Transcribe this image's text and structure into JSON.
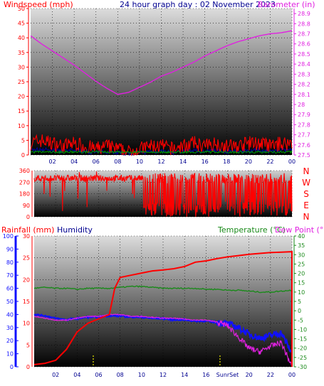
{
  "header": {
    "left": "Windspeed (mph)",
    "center": "24 hour graph day : 02 November 2023",
    "right": "Barometer (in)"
  },
  "legend": {
    "rain": "Rainfall (mm)",
    "humidity": "Humidity",
    "temperature": "Temperature (°C)",
    "dewpoint": "Dew Point (°C)"
  },
  "colors": {
    "windspeed": "#ff0000",
    "winddir": "#ff0000",
    "barometer": "#e020e0",
    "rain": "#ff0000",
    "humidity": "#1010ff",
    "temperature": "#1a8a1a",
    "dewpoint": "#e020e0",
    "gust_base": "#000090",
    "avg_wind": "#00a000",
    "sunrise_sunset": "#e8e800"
  },
  "chart_data": [
    {
      "type": "line",
      "title": "Windspeed / Barometer",
      "x_ticks": [
        "02",
        "04",
        "06",
        "08",
        "10",
        "12",
        "14",
        "16",
        "18",
        "20",
        "22",
        "00"
      ],
      "y_left_label": "Windspeed (mph)",
      "y_left_ticks": [
        0,
        5,
        10,
        15,
        20,
        25,
        30,
        35,
        40,
        45,
        50
      ],
      "y_left_range": [
        0,
        50
      ],
      "y_right_label": "Barometer (in)",
      "y_right_ticks": [
        "27.5",
        "27.6",
        "27.7",
        "27.8",
        "27.9",
        "28",
        "28.1",
        "28.2",
        "28.3",
        "28.4",
        "28.5",
        "28.6",
        "28.7",
        "28.8",
        "28.9"
      ],
      "y_right_range": [
        27.5,
        28.95
      ],
      "series": [
        {
          "name": "Barometer (in)",
          "axis": "right",
          "x": [
            0,
            1,
            2,
            3,
            4,
            5,
            6,
            7,
            8,
            9,
            10,
            11,
            12,
            13,
            14,
            15,
            16,
            17,
            18,
            19,
            20,
            21,
            22,
            23,
            24
          ],
          "values": [
            28.68,
            28.6,
            28.53,
            28.46,
            28.39,
            28.31,
            28.23,
            28.16,
            28.1,
            28.12,
            28.17,
            28.22,
            28.28,
            28.32,
            28.37,
            28.42,
            28.48,
            28.53,
            28.58,
            28.62,
            28.65,
            28.68,
            28.7,
            28.71,
            28.73
          ]
        },
        {
          "name": "Windspeed (mph)",
          "axis": "left",
          "x": [
            0,
            1,
            2,
            3,
            4,
            5,
            6,
            7,
            8,
            9,
            10,
            11,
            12,
            13,
            14,
            15,
            16,
            17,
            18,
            19,
            20,
            21,
            22,
            23,
            24
          ],
          "values": [
            4,
            5,
            4,
            3,
            4,
            3,
            2,
            3,
            2,
            1,
            2,
            3,
            3,
            2,
            3,
            4,
            3,
            4,
            3,
            3,
            4,
            4,
            3,
            4,
            4
          ]
        }
      ]
    },
    {
      "type": "scatter",
      "title": "Wind Direction",
      "x_ticks": [
        "02",
        "04",
        "06",
        "08",
        "10",
        "12",
        "14",
        "16",
        "18",
        "20",
        "22",
        "00"
      ],
      "y_ticks": [
        "360",
        "270",
        "180",
        "90",
        "0"
      ],
      "y_range": [
        0,
        360
      ],
      "compass_labels": [
        "N",
        "W",
        "S",
        "E",
        "N"
      ],
      "series": [
        {
          "name": "Wind Direction",
          "x": [
            0,
            0.5,
            1,
            1.5,
            2,
            3,
            4,
            5,
            6,
            7,
            8,
            9,
            10,
            10.5,
            11,
            12,
            13,
            14,
            15,
            16,
            17,
            18,
            19,
            20,
            21,
            22,
            23,
            24
          ],
          "values": [
            320,
            300,
            200,
            310,
            320,
            300,
            310,
            305,
            300,
            310,
            320,
            325,
            330,
            180,
            60,
            40,
            200,
            90,
            30,
            250,
            70,
            200,
            60,
            330,
            100,
            250,
            40,
            200
          ]
        }
      ]
    },
    {
      "type": "line",
      "title": "Rainfall / Humidity / Temperature / Dew Point",
      "x_ticks": [
        "02",
        "04",
        "06",
        "08",
        "10",
        "12",
        "14",
        "16",
        "SunrSet",
        "20",
        "22",
        "00"
      ],
      "y_humidity_ticks": [
        0,
        10,
        20,
        30,
        40,
        50,
        60,
        70,
        80,
        90,
        100
      ],
      "y_rain_ticks": [
        0,
        5,
        10,
        15,
        20,
        25,
        30
      ],
      "y_rain_range": [
        0,
        30
      ],
      "y_temp_ticks": [
        -30,
        -25,
        -20,
        -15,
        -10,
        -5,
        0,
        5,
        10,
        15,
        20,
        25,
        30,
        35,
        40
      ],
      "y_temp_range": [
        -30,
        40
      ],
      "sunrise_hour": 5.5,
      "sunset_hour": 17.3,
      "series": [
        {
          "name": "Rainfall (mm)",
          "axis": "rain",
          "x": [
            0,
            1,
            2,
            3,
            4,
            5,
            6,
            7,
            7.5,
            8,
            9,
            10,
            11,
            12,
            13,
            14,
            15,
            16,
            17,
            18,
            19,
            20,
            21,
            22,
            23,
            24
          ],
          "values": [
            0.5,
            0.8,
            1.5,
            4,
            8,
            10,
            11,
            12,
            18,
            20.5,
            21,
            21.5,
            22,
            22.2,
            22.5,
            23,
            24,
            24.3,
            24.8,
            25.2,
            25.5,
            25.8,
            26,
            26.2,
            26.3,
            26.4
          ]
        },
        {
          "name": "Humidity",
          "axis": "humidity",
          "x": [
            0,
            1,
            2,
            3,
            4,
            5,
            6,
            7,
            8,
            9,
            10,
            11,
            12,
            13,
            14,
            15,
            16,
            17,
            18,
            19,
            20,
            21,
            22,
            23,
            24
          ],
          "values": [
            40,
            39,
            37,
            36,
            37,
            38,
            38,
            39,
            39,
            38,
            38,
            37,
            37,
            36,
            36,
            35,
            35,
            34,
            33,
            30,
            25,
            22,
            24,
            26,
            10
          ]
        },
        {
          "name": "Temperature (°C)",
          "axis": "temp",
          "x": [
            0,
            1,
            2,
            3,
            4,
            5,
            6,
            7,
            8,
            9,
            10,
            11,
            12,
            13,
            14,
            15,
            16,
            17,
            18,
            19,
            20,
            21,
            22,
            23,
            24
          ],
          "values": [
            12,
            12.5,
            12,
            12,
            11.5,
            12,
            12,
            12,
            12.5,
            13,
            13,
            12.5,
            12,
            12,
            12,
            12,
            11.5,
            11.5,
            11,
            11,
            10.5,
            10,
            10,
            10.5,
            11
          ]
        },
        {
          "name": "Dew Point (°C)",
          "axis": "temp",
          "x": [
            0,
            1,
            2,
            3,
            4,
            5,
            6,
            7,
            8,
            9,
            10,
            11,
            12,
            13,
            14,
            15,
            16,
            17,
            18,
            19,
            20,
            21,
            22,
            23,
            24
          ],
          "values": [
            -3,
            -4,
            -5,
            -5,
            -4,
            -3,
            -3,
            -2,
            -2,
            -3,
            -3,
            -3.5,
            -4,
            -4,
            -4.5,
            -5,
            -5,
            -6,
            -8,
            -14,
            -20,
            -22,
            -19,
            -17,
            -30
          ]
        }
      ]
    }
  ]
}
